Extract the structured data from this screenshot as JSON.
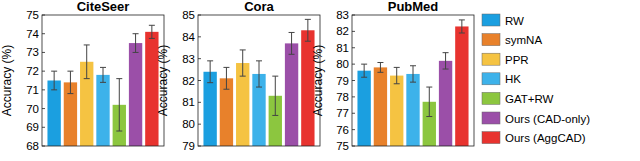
{
  "chart_data": [
    {
      "type": "bar",
      "title": "CiteSeer",
      "y_label": "Accuracy (%)",
      "categories": [
        null
      ],
      "ylim": [
        68,
        75
      ],
      "yticks": [
        68,
        69,
        70,
        71,
        72,
        73,
        74,
        75
      ],
      "grid": false,
      "tick_labels": "y",
      "series": [
        {
          "name": "RW",
          "color": "#1b9fe0",
          "values": [
            71.5
          ],
          "errors": [
            0.5
          ]
        },
        {
          "name": "symNA",
          "color": "#e8812b",
          "values": [
            71.4
          ],
          "errors": [
            0.6
          ]
        },
        {
          "name": "PPR",
          "color": "#f5c342",
          "values": [
            72.5
          ],
          "errors": [
            0.9
          ]
        },
        {
          "name": "HK",
          "color": "#3db2ea",
          "values": [
            71.8
          ],
          "errors": [
            0.4
          ]
        },
        {
          "name": "GAT+RW",
          "color": "#8cc63f",
          "values": [
            70.2
          ],
          "errors": [
            1.4
          ]
        },
        {
          "name": "Ours (CAD-only)",
          "color": "#9b4fa8",
          "values": [
            73.5
          ],
          "errors": [
            0.5
          ]
        },
        {
          "name": "Ours (AggCAD)",
          "color": "#e8332f",
          "values": [
            74.1
          ],
          "errors": [
            0.35
          ]
        }
      ]
    },
    {
      "type": "bar",
      "title": "Cora",
      "categories": [
        null
      ],
      "ylim": [
        79,
        85
      ],
      "yticks": [
        79,
        80,
        81,
        82,
        83,
        84,
        85
      ],
      "grid": false,
      "tick_labels": "y",
      "series": [
        {
          "name": "RW",
          "color": "#1b9fe0",
          "values": [
            82.4
          ],
          "errors": [
            0.5
          ]
        },
        {
          "name": "symNA",
          "color": "#e8812b",
          "values": [
            82.1
          ],
          "errors": [
            0.5
          ]
        },
        {
          "name": "PPR",
          "color": "#f5c342",
          "values": [
            82.8
          ],
          "errors": [
            0.6
          ]
        },
        {
          "name": "HK",
          "color": "#3db2ea",
          "values": [
            82.3
          ],
          "errors": [
            0.6
          ]
        },
        {
          "name": "GAT+RW",
          "color": "#8cc63f",
          "values": [
            81.3
          ],
          "errors": [
            0.9
          ]
        },
        {
          "name": "Ours (CAD-only)",
          "color": "#9b4fa8",
          "values": [
            83.7
          ],
          "errors": [
            0.5
          ]
        },
        {
          "name": "Ours (AggCAD)",
          "color": "#e8332f",
          "values": [
            84.3
          ],
          "errors": [
            0.5
          ]
        }
      ]
    },
    {
      "type": "bar",
      "title": "PubMed",
      "categories": [
        null
      ],
      "ylim": [
        75,
        83
      ],
      "yticks": [
        75,
        76,
        77,
        78,
        79,
        80,
        81,
        82,
        83
      ],
      "grid": false,
      "tick_labels": "y",
      "legend": "right",
      "series": [
        {
          "name": "RW",
          "color": "#1b9fe0",
          "values": [
            79.6
          ],
          "errors": [
            0.4
          ]
        },
        {
          "name": "symNA",
          "color": "#e8812b",
          "values": [
            79.8
          ],
          "errors": [
            0.3
          ]
        },
        {
          "name": "PPR",
          "color": "#f5c342",
          "values": [
            79.3
          ],
          "errors": [
            0.5
          ]
        },
        {
          "name": "HK",
          "color": "#3db2ea",
          "values": [
            79.4
          ],
          "errors": [
            0.5
          ]
        },
        {
          "name": "GAT+RW",
          "color": "#8cc63f",
          "values": [
            77.7
          ],
          "errors": [
            0.9
          ]
        },
        {
          "name": "Ours (CAD-only)",
          "color": "#9b4fa8",
          "values": [
            80.2
          ],
          "errors": [
            0.5
          ]
        },
        {
          "name": "Ours (AggCAD)",
          "color": "#e8332f",
          "values": [
            82.3
          ],
          "errors": [
            0.4
          ]
        }
      ]
    }
  ]
}
